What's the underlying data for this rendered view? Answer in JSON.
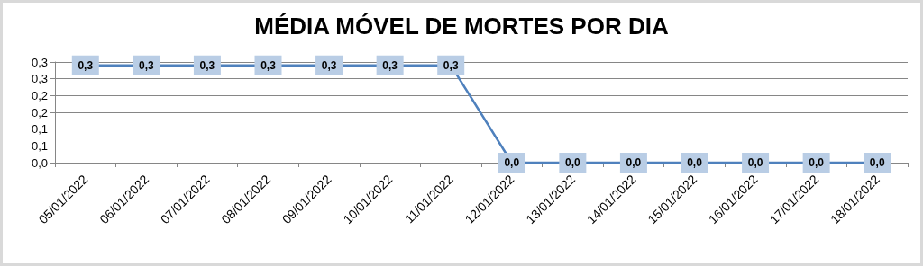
{
  "chart_data": {
    "type": "line",
    "title": "MÉDIA MÓVEL DE MORTES POR DIA",
    "categories": [
      "05/01/2022",
      "06/01/2022",
      "07/01/2022",
      "08/01/2022",
      "09/01/2022",
      "10/01/2022",
      "11/01/2022",
      "12/01/2022",
      "13/01/2022",
      "14/01/2022",
      "15/01/2022",
      "16/01/2022",
      "17/01/2022",
      "18/01/2022"
    ],
    "series": [
      {
        "color": "#4f81bd",
        "values": [
          0.29,
          0.29,
          0.29,
          0.29,
          0.29,
          0.29,
          0.29,
          0,
          0,
          0,
          0,
          0,
          0,
          0
        ],
        "value_labels": [
          "0,3",
          "0,3",
          "0,3",
          "0,3",
          "0,3",
          "0,3",
          "0,3",
          "0,0",
          "0,0",
          "0,0",
          "0,0",
          "0,0",
          "0,0",
          "0,0"
        ]
      }
    ],
    "ylim": [
      0,
      0.3
    ],
    "yticks": [
      {
        "value": 0,
        "label": "0,0"
      },
      {
        "value": 0.05,
        "label": "0,1"
      },
      {
        "value": 0.1,
        "label": "0,1"
      },
      {
        "value": 0.15,
        "label": "0,2"
      },
      {
        "value": 0.2,
        "label": "0,2"
      },
      {
        "value": 0.25,
        "label": "0,3"
      },
      {
        "value": 0.3,
        "label": "0,3"
      }
    ],
    "grid": "y",
    "marker": "square",
    "line_style": "solid"
  }
}
